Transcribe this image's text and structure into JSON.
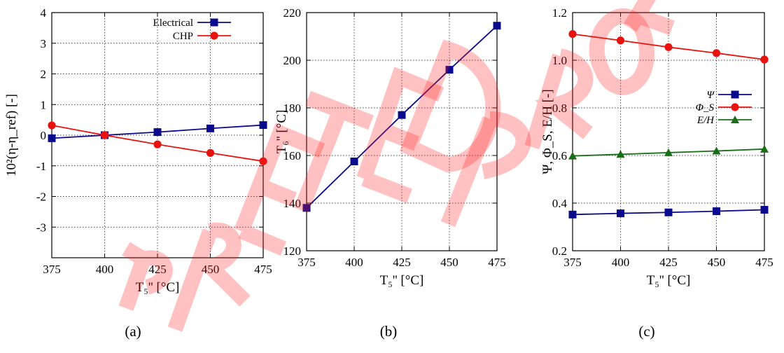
{
  "chart_data": [
    {
      "type": "line",
      "caption": "(a)",
      "ylabel": "10²(η-η_ref) [-]",
      "xlabel": "T₅'' [°C]",
      "x": [
        375,
        400,
        425,
        450,
        475
      ],
      "xlim": [
        375,
        475
      ],
      "ylim": [
        -4,
        4
      ],
      "xticks": [
        375,
        400,
        425,
        450,
        475
      ],
      "yticks": [
        -3,
        -2,
        -1,
        0,
        1,
        2,
        3,
        4
      ],
      "ytick_labels": [
        "-3",
        "-2",
        "-1",
        "0",
        "1",
        "2",
        "3",
        "4"
      ],
      "grid": true,
      "legend_position": "top-right",
      "series": [
        {
          "name": "Electrical",
          "values": [
            -0.1,
            0.0,
            0.1,
            0.22,
            0.33
          ],
          "color": "#0a0a8c",
          "marker": "square"
        },
        {
          "name": "CHP",
          "values": [
            0.32,
            0.0,
            -0.3,
            -0.58,
            -0.85
          ],
          "color": "#e8130f",
          "marker": "circle"
        }
      ]
    },
    {
      "type": "line",
      "caption": "(b)",
      "ylabel": "T₆'' [°C]",
      "xlabel": "T₅'' [°C]",
      "x": [
        375,
        400,
        425,
        450,
        475
      ],
      "xlim": [
        375,
        475
      ],
      "ylim": [
        120,
        220
      ],
      "xticks": [
        375,
        400,
        425,
        450,
        475
      ],
      "yticks": [
        120,
        140,
        160,
        180,
        200,
        220
      ],
      "ytick_labels": [
        "120",
        "140",
        "160",
        "180",
        "200",
        "220"
      ],
      "grid": true,
      "series": [
        {
          "values": [
            138,
            157.5,
            177,
            196,
            214.5
          ],
          "color": "#0a0a8c",
          "marker": "square"
        }
      ]
    },
    {
      "type": "line",
      "caption": "(c)",
      "ylabel": "Ψ, Φ_S, E/H [-]",
      "xlabel": "T₅'' [°C]",
      "x": [
        375,
        400,
        425,
        450,
        475
      ],
      "xlim": [
        375,
        475
      ],
      "ylim": [
        0.2,
        1.2
      ],
      "xticks": [
        375,
        400,
        425,
        450,
        475
      ],
      "yticks": [
        0.2,
        0.4,
        0.6,
        0.8,
        1.0,
        1.2
      ],
      "ytick_labels": [
        "0.2",
        "0.4",
        "0.6",
        "0.8",
        "1.0",
        "1.2"
      ],
      "grid": true,
      "legend_position": "center-right",
      "series": [
        {
          "name": "Ψ",
          "values": [
            0.352,
            0.357,
            0.361,
            0.366,
            0.372
          ],
          "color": "#0a0a8c",
          "marker": "square"
        },
        {
          "name": "Φ_S",
          "values": [
            1.11,
            1.083,
            1.055,
            1.03,
            1.003
          ],
          "color": "#e8130f",
          "marker": "circle"
        },
        {
          "name": "E/H",
          "values": [
            0.598,
            0.605,
            0.612,
            0.619,
            0.627
          ],
          "color": "#1a6e1a",
          "marker": "triangle"
        }
      ]
    }
  ],
  "watermark": {
    "color": "#ff2020"
  }
}
